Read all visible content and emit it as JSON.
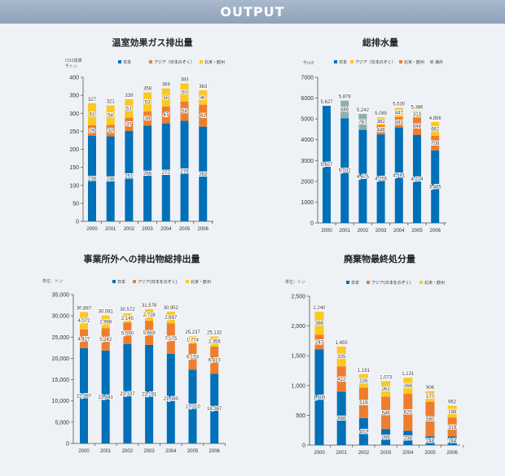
{
  "header": {
    "title": "OUTPUT"
  },
  "colors": {
    "japan": "#0070b8",
    "asia": "#ef7d2d",
    "namerica_europe": "#fcc821",
    "overseas": "#8fb0aa"
  },
  "chart_data": [
    {
      "type": "bar",
      "stacked": true,
      "title": "温室効果ガス排出量",
      "ylabel": [
        "CO2換算",
        "千トン"
      ],
      "categories": [
        "2000",
        "2001",
        "2002",
        "2003",
        "2004",
        "2005",
        "2006"
      ],
      "ylim": [
        0,
        400
      ],
      "yticks": [
        0,
        50,
        100,
        150,
        200,
        250,
        300,
        350,
        400
      ],
      "series": [
        {
          "name": "日本",
          "color": "#0070b8",
          "values": [
            238,
            236,
            251,
            266,
            272,
            279,
            263
          ]
        },
        {
          "name": "アジア（日本のぞく）",
          "color": "#ef7d2d",
          "values": [
            29,
            32,
            37,
            39,
            47,
            54,
            61
          ]
        },
        {
          "name": "北米・欧州",
          "color": "#fcc821",
          "values": [
            61,
            54,
            51,
            53,
            50,
            50,
            40
          ]
        }
      ],
      "totals": [
        327,
        321,
        339,
        358,
        369,
        383,
        363
      ]
    },
    {
      "type": "bar",
      "stacked": true,
      "title": "総排水量",
      "ylabel": [
        "千m3"
      ],
      "categories": [
        "2000",
        "2001",
        "2002",
        "2003",
        "2004",
        "2005",
        "2006"
      ],
      "ylim": [
        0,
        7000
      ],
      "yticks": [
        0,
        1000,
        2000,
        3000,
        4000,
        5000,
        6000,
        7000
      ],
      "legend": [
        {
          "name": "日本",
          "color": "#0070b8"
        },
        {
          "name": "アジア（日本のぞく）",
          "color": "#fcc821"
        },
        {
          "name": "北米・欧州",
          "color": "#ef7d2d"
        },
        {
          "name": "海外",
          "color": "#8fb0aa"
        }
      ],
      "series": [
        {
          "name": "日本",
          "color": "#0070b8",
          "values": [
            5627,
            5032,
            4475,
            4255,
            4591,
            4224,
            3485
          ]
        },
        {
          "name": "海外",
          "color": "#8fb0aa",
          "values": [
            null,
            846,
            767,
            null,
            null,
            null,
            null
          ]
        },
        {
          "name": "北米・欧州",
          "color": "#ef7d2d",
          "values": [
            null,
            null,
            null,
            448,
            493,
            849,
            709
          ]
        },
        {
          "name": "アジア（日本のぞく）",
          "color": "#fcc821",
          "values": [
            null,
            null,
            null,
            382,
            447,
            313,
            662
          ]
        }
      ],
      "totals": [
        5627,
        5878,
        5242,
        5085,
        5530,
        5386,
        4856
      ]
    },
    {
      "type": "bar",
      "stacked": true,
      "title": "事業所外への排出物総排出量",
      "ylabel": [
        "単位：トン"
      ],
      "categories": [
        "2000",
        "2001",
        "2002",
        "2003",
        "2004",
        "2005",
        "2006"
      ],
      "ylim": [
        0,
        35000
      ],
      "yticks": [
        0,
        5000,
        10000,
        15000,
        20000,
        25000,
        30000,
        35000
      ],
      "series": [
        {
          "name": "日本",
          "color": "#0070b8",
          "values": [
            22387,
            21841,
            23337,
            23191,
            21080,
            17310,
            16367
          ]
        },
        {
          "name": "アジア(日本をのぞく)",
          "color": "#ef7d2d",
          "values": [
            4427,
            5242,
            5090,
            5659,
            7175,
            6153,
            6410
          ]
        },
        {
          "name": "北米・欧州",
          "color": "#fcc821",
          "values": [
            4072,
            2998,
            2145,
            2728,
            2697,
            1774,
            2356
          ]
        }
      ],
      "totals": [
        30887,
        30081,
        30572,
        31578,
        30952,
        25237,
        25132
      ]
    },
    {
      "type": "bar",
      "stacked": true,
      "title": "廃棄物最終処分量",
      "ylabel": [
        "単位：トン"
      ],
      "categories": [
        "2000",
        "2001",
        "2002",
        "2003",
        "2004",
        "2005",
        "2006"
      ],
      "ylim": [
        0,
        2500
      ],
      "yticks": [
        0,
        500,
        1000,
        1500,
        2000,
        2500
      ],
      "series": [
        {
          "name": "日本",
          "color": "#0070b8",
          "values": [
            1605,
            898,
            451,
            266,
            238,
            148,
            144
          ]
        },
        {
          "name": "アジア(日本をのぞく)",
          "color": "#ef7d2d",
          "values": [
            247,
            422,
            514,
            546,
            625,
            580,
            319
          ]
        },
        {
          "name": "北米・欧州",
          "color": "#fcc821",
          "values": [
            388,
            335,
            226,
            261,
            268,
            177,
            198
          ]
        }
      ],
      "totals": [
        2240,
        1655,
        1191,
        1073,
        1131,
        906,
        662
      ]
    }
  ]
}
